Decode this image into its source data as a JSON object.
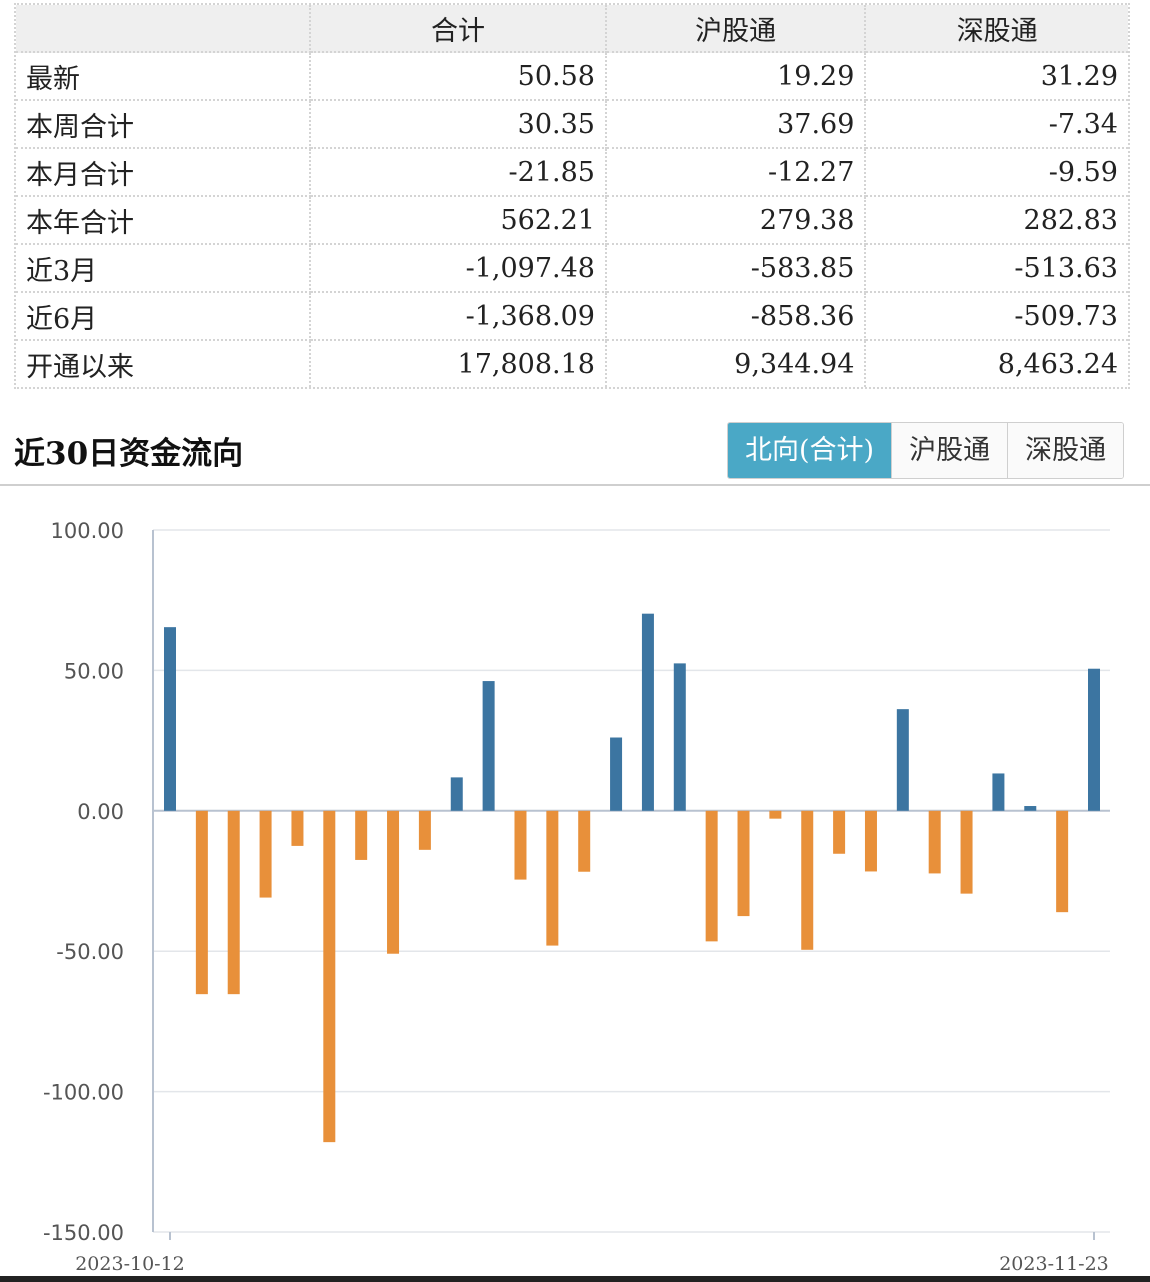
{
  "summary": {
    "headers": [
      "",
      "合计",
      "沪股通",
      "深股通"
    ],
    "rows": [
      {
        "label": "最新",
        "total": "50.58",
        "sh": "19.29",
        "sz": "31.29"
      },
      {
        "label": "本周合计",
        "total": "30.35",
        "sh": "37.69",
        "sz": "-7.34"
      },
      {
        "label": "本月合计",
        "total": "-21.85",
        "sh": "-12.27",
        "sz": "-9.59"
      },
      {
        "label": "本年合计",
        "total": "562.21",
        "sh": "279.38",
        "sz": "282.83"
      },
      {
        "label": "近3月",
        "total": "-1,097.48",
        "sh": "-583.85",
        "sz": "-513.63"
      },
      {
        "label": "近6月",
        "total": "-1,368.09",
        "sh": "-858.36",
        "sz": "-509.73"
      },
      {
        "label": "开通以来",
        "total": "17,808.18",
        "sh": "9,344.94",
        "sz": "8,463.24"
      }
    ]
  },
  "section": {
    "title": "近30日资金流向",
    "tabs": [
      "北向(合计)",
      "沪股通",
      "深股通"
    ],
    "active_tab": 0
  },
  "colors": {
    "positive": "#3c75a1",
    "negative": "#e8903a",
    "tab_active": "#4aa8c6",
    "grid": "#e3e6ea",
    "axis": "#b8c2d0"
  },
  "chart_data": {
    "type": "bar",
    "title": "",
    "xlabel": "",
    "ylabel": "",
    "ylim": [
      -150,
      100
    ],
    "yticks": [
      100,
      50,
      0,
      -50,
      -100,
      -150
    ],
    "ytick_labels": [
      "100.00",
      "50.00",
      "0.00",
      "-50.00",
      "-100.00",
      "-150.00"
    ],
    "x_first_label": "2023-10-12",
    "x_last_label": "2023-11-23",
    "values": [
      65.4,
      -65.3,
      -65.3,
      -30.9,
      -12.5,
      -118.0,
      -17.5,
      -50.9,
      -13.9,
      11.9,
      46.2,
      -24.5,
      -48.0,
      -21.7,
      26.1,
      70.2,
      52.5,
      -46.5,
      -37.5,
      -2.8,
      -49.5,
      -15.3,
      -21.6,
      36.2,
      -22.3,
      -29.5,
      13.3,
      1.7,
      -36.1,
      50.6
    ],
    "grid": true,
    "legend": "none"
  }
}
